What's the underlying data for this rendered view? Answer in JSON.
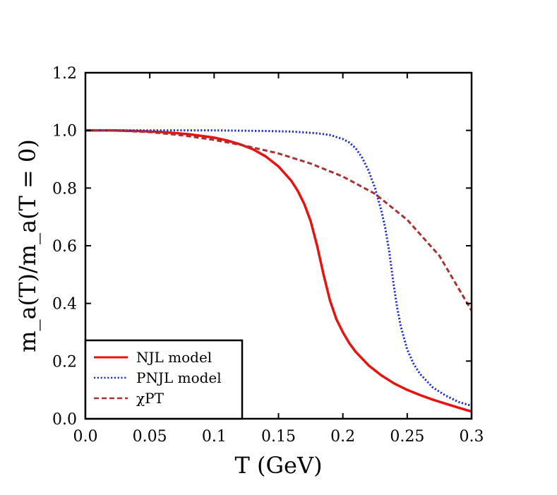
{
  "chart_data": {
    "type": "line",
    "xlabel": "T (GeV)",
    "ylabel": "m_a(T)/m_a(T = 0)",
    "xlim": [
      0.0,
      0.3
    ],
    "ylim": [
      0.0,
      1.2
    ],
    "xticks": [
      "0.0",
      "0.05",
      "0.1",
      "0.15",
      "0.2",
      "0.25",
      "0.3"
    ],
    "yticks": [
      "0.0",
      "0.2",
      "0.4",
      "0.6",
      "0.8",
      "1.0",
      "1.2"
    ],
    "legend_position": "bottom-left",
    "grid": false,
    "series": [
      {
        "name": "NJL model",
        "color": "#e8120f",
        "style": "solid",
        "x": [
          0,
          0.02,
          0.04,
          0.06,
          0.08,
          0.1,
          0.11,
          0.12,
          0.13,
          0.14,
          0.15,
          0.16,
          0.165,
          0.17,
          0.175,
          0.18,
          0.185,
          0.19,
          0.195,
          0.2,
          0.205,
          0.21,
          0.22,
          0.23,
          0.24,
          0.25,
          0.26,
          0.27,
          0.28,
          0.29,
          0.3
        ],
        "y": [
          1.0,
          1.0,
          0.998,
          0.994,
          0.987,
          0.975,
          0.965,
          0.952,
          0.935,
          0.91,
          0.875,
          0.825,
          0.79,
          0.745,
          0.685,
          0.6,
          0.5,
          0.41,
          0.345,
          0.3,
          0.262,
          0.232,
          0.185,
          0.15,
          0.122,
          0.1,
          0.082,
          0.066,
          0.052,
          0.038,
          0.025
        ]
      },
      {
        "name": "PNJL model",
        "color": "#1c2ed6",
        "style": "dotted",
        "x": [
          0,
          0.05,
          0.1,
          0.12,
          0.14,
          0.16,
          0.18,
          0.19,
          0.2,
          0.205,
          0.21,
          0.215,
          0.22,
          0.225,
          0.23,
          0.233,
          0.236,
          0.239,
          0.242,
          0.245,
          0.25,
          0.255,
          0.26,
          0.27,
          0.28,
          0.29,
          0.3
        ],
        "y": [
          1.0,
          1.0,
          1.0,
          0.999,
          0.998,
          0.996,
          0.99,
          0.984,
          0.97,
          0.958,
          0.938,
          0.905,
          0.86,
          0.8,
          0.72,
          0.66,
          0.58,
          0.48,
          0.39,
          0.32,
          0.24,
          0.19,
          0.155,
          0.108,
          0.08,
          0.058,
          0.045
        ]
      },
      {
        "name": "χPT",
        "color": "#a83232",
        "style": "dashed",
        "x": [
          0,
          0.025,
          0.05,
          0.075,
          0.1,
          0.125,
          0.15,
          0.175,
          0.2,
          0.225,
          0.25,
          0.275,
          0.3
        ],
        "y": [
          1.0,
          0.999,
          0.994,
          0.983,
          0.967,
          0.946,
          0.92,
          0.885,
          0.84,
          0.78,
          0.69,
          0.565,
          0.375
        ]
      }
    ]
  }
}
